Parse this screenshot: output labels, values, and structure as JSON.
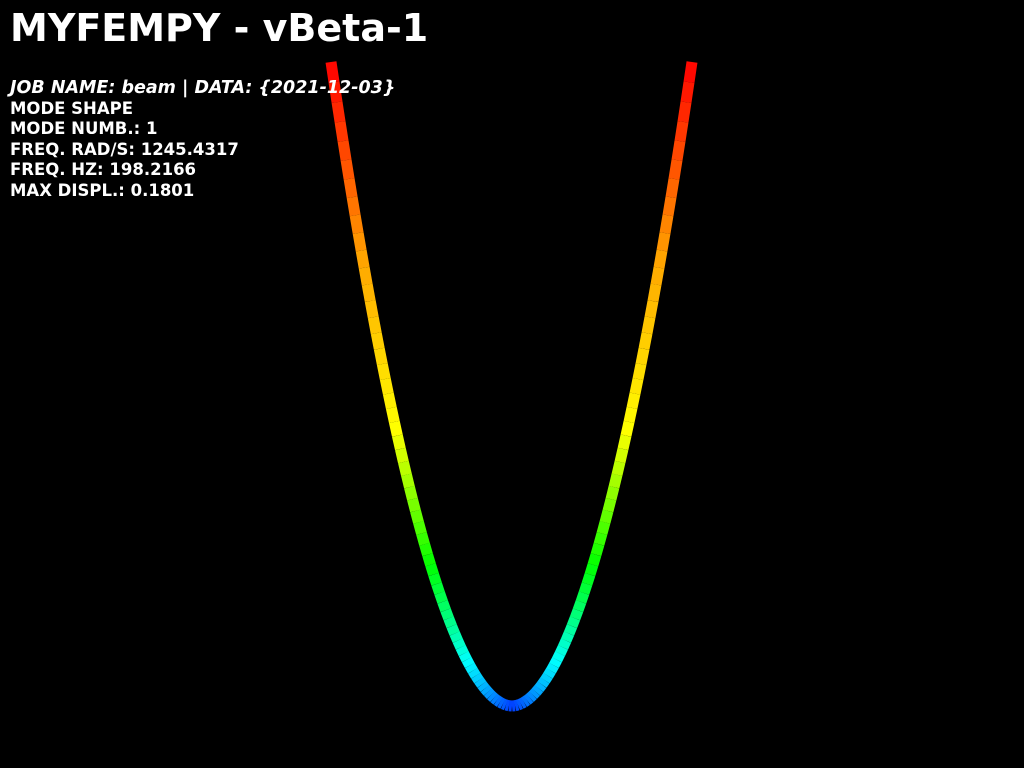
{
  "app": {
    "title": "MYFEMPY - vBeta-1"
  },
  "info": {
    "job_line": "JOB NAME: beam | DATA: {2021-12-03}",
    "analysis": "MODE SHAPE",
    "mode_number": "MODE NUMB.: 1",
    "freq_rad": "FREQ. RAD/S: 1245.4317",
    "freq_hz": "FREQ. HZ: 198.2166",
    "max_displ": "MAX DISPL.: 0.1801"
  },
  "colors": {
    "background": "#000000",
    "text": "#ffffff",
    "colormap": [
      "#0040ff",
      "#00ffff",
      "#00ff00",
      "#ffff00",
      "#ffa500",
      "#ff0000"
    ]
  }
}
